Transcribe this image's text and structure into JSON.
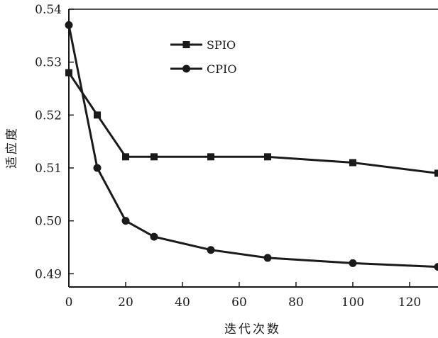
{
  "chart_data": {
    "type": "line",
    "xlabel": "迭代次数",
    "ylabel": "适应度",
    "xlim": [
      0,
      130
    ],
    "ylim": [
      0.4875,
      0.54
    ],
    "x_ticks": [
      "0",
      "20",
      "40",
      "60",
      "80",
      "100",
      "120"
    ],
    "y_ticks": [
      "0.49",
      "0.50",
      "0.51",
      "0.52",
      "0.53",
      "0.54"
    ],
    "grid": false,
    "legend_position": "top-center",
    "series": [
      {
        "name": "SPIO",
        "marker": "square",
        "color": "#1a1a1a",
        "x": [
          0,
          10,
          20,
          30,
          50,
          70,
          100,
          130
        ],
        "y": [
          0.528,
          0.52,
          0.5121,
          0.5121,
          0.5121,
          0.5121,
          0.511,
          0.509
        ]
      },
      {
        "name": "CPIO",
        "marker": "circle",
        "color": "#1a1a1a",
        "x": [
          0,
          10,
          20,
          30,
          50,
          70,
          100,
          130
        ],
        "y": [
          0.537,
          0.51,
          0.5,
          0.497,
          0.4945,
          0.493,
          0.492,
          0.4913
        ]
      }
    ]
  }
}
